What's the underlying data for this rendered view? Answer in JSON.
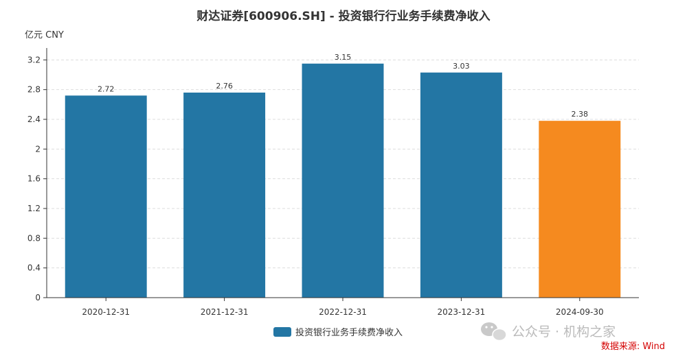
{
  "chart_data": {
    "type": "bar",
    "title": "财达证券[600906.SH] - 投资银行行业务手续费净收入",
    "ylabel": "亿元  CNY",
    "categories": [
      "2020-12-31",
      "2021-12-31",
      "2022-12-31",
      "2023-12-31",
      "2024-09-30"
    ],
    "series": [
      {
        "name": "投资银行业务手续费净收入",
        "values": [
          2.72,
          2.76,
          3.15,
          3.03,
          2.38
        ]
      }
    ],
    "data_labels": [
      "2.72",
      "2.76",
      "3.15",
      "3.03",
      "2.38"
    ],
    "ylim": [
      0,
      3.36
    ],
    "yticks": [
      0,
      0.4,
      0.8,
      1.2,
      1.6,
      2,
      2.4,
      2.8,
      3.2
    ],
    "ytick_labels": [
      "0",
      "0.4",
      "0.8",
      "1.2",
      "1.6",
      "2",
      "2.4",
      "2.8",
      "3.2"
    ],
    "grid": true,
    "legend": "bottom-center",
    "colors": {
      "bar": "#2376a4",
      "highlight_bar": "#f58a1f"
    },
    "highlight_index": 4
  },
  "footer": {
    "source": "数据来源: Wind",
    "watermark": "公众号 · 机构之家",
    "watermark_icon": "wechat-icon"
  }
}
